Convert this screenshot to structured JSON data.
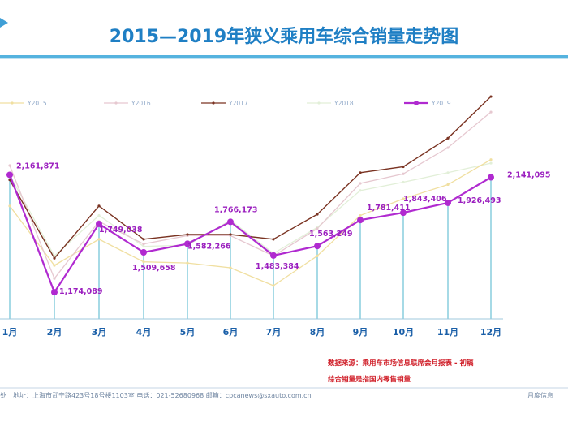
{
  "title": "2015—2019年狭义乘用车综合销量走势图",
  "colors": {
    "title": "#1f7fc4",
    "Y2015": "#f0dfa0",
    "Y2016": "#e6c8d0",
    "Y2017": "#7a3322",
    "Y2018": "#e2efd8",
    "Y2019": "#b02ad0",
    "gridline": "#8fd0e0",
    "header_bar": "#55b3df"
  },
  "chart_data": {
    "type": "line",
    "categories": [
      "1月",
      "2月",
      "3月",
      "4月",
      "5月",
      "6月",
      "7月",
      "8月",
      "9月",
      "10月",
      "11月",
      "12月"
    ],
    "series": [
      {
        "name": "Y2015",
        "values": [
          1900000,
          1400000,
          1620000,
          1430000,
          1420000,
          1380000,
          1230000,
          1480000,
          1820000,
          1960000,
          2080000,
          2290000
        ]
      },
      {
        "name": "Y2016",
        "values": [
          2240000,
          1290000,
          1770000,
          1580000,
          1650000,
          1650000,
          1480000,
          1710000,
          2090000,
          2170000,
          2390000,
          2690000
        ]
      },
      {
        "name": "Y2017",
        "values": [
          2120000,
          1460000,
          1900000,
          1620000,
          1660000,
          1660000,
          1620000,
          1830000,
          2180000,
          2230000,
          2470000,
          2820000
        ]
      },
      {
        "name": "Y2018",
        "values": [
          2160000,
          1480000,
          1820000,
          1560000,
          1570000,
          1780000,
          1500000,
          1720000,
          2030000,
          2100000,
          2180000,
          2260000
        ]
      },
      {
        "name": "Y2019",
        "values": [
          2161871,
          1174089,
          1749038,
          1509658,
          1582266,
          1766173,
          1483384,
          1563249,
          1781411,
          1843406,
          1926493,
          2141095
        ]
      }
    ],
    "data_labels": {
      "Y2019": [
        "2,161,871",
        "1,174,089",
        "1,749,038",
        "1,509,658",
        "1,582,266",
        "1,766,173",
        "1,483,384",
        "1,563,249",
        "1,781,411",
        "1,843,406",
        "1,926,493",
        "2,141,095"
      ]
    },
    "ylim": [
      950000,
      2950000
    ],
    "grid": true,
    "legend_position": "top"
  },
  "source_note": {
    "line1": "数据来源：乘用车市场信息联席会月报表 - 初稿",
    "line2": "综合销量是指国内零售销量"
  },
  "footer": {
    "address": "地址：上海市武宁路423号18号楼1103室  电话：021-52680968  邮箱：cpcanews@sxauto.com.cn",
    "right_text": "月度信息",
    "left_fragment": "处"
  }
}
